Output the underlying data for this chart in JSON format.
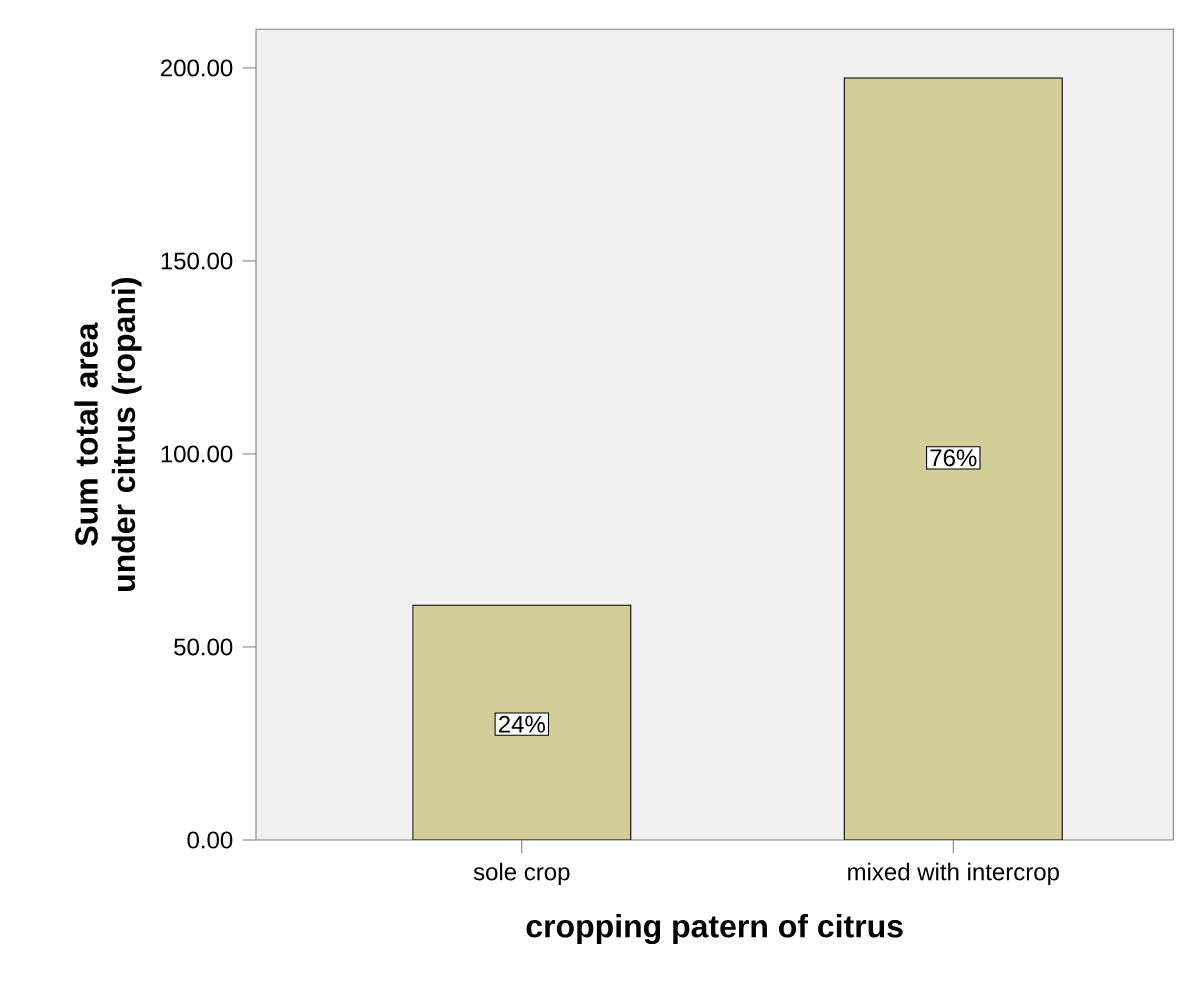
{
  "chart_data": {
    "type": "bar",
    "xlabel": "cropping patern of citrus",
    "ylabel": "Sum total area under citrus (ropani)",
    "categories": [
      "sole crop",
      "mixed with intercrop"
    ],
    "values": [
      60.8,
      197.4
    ],
    "annotations": [
      {
        "text": "24%",
        "x": "sole crop",
        "y": 30
      },
      {
        "text": "76%",
        "x": "mixed with intercrop",
        "y": 99
      }
    ],
    "color": "#d3ce97",
    "ylim": [
      0,
      210
    ],
    "yticks": [
      {
        "value": 0,
        "label": "0.00"
      },
      {
        "value": 50,
        "label": "50.00"
      },
      {
        "value": 100,
        "label": "100.00"
      },
      {
        "value": 150,
        "label": "150.00"
      },
      {
        "value": 200,
        "label": "200.00"
      }
    ],
    "grid": false
  }
}
